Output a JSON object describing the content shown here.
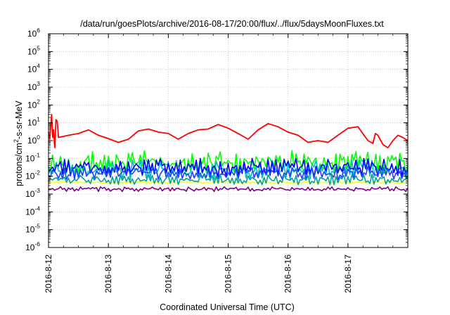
{
  "chart_data": {
    "type": "line",
    "title": "/data/run/goesPlots/archive/2016-08-17/20:00/flux/../flux/5daysMoonFluxes.txt",
    "xlabel": "Coordinated Universal Time (UTC)",
    "ylabel": {
      "pre": "protons/cm",
      "sup": "2",
      "post": "-s-sr-MeV"
    },
    "yscale": "log",
    "ylim": [
      1e-06,
      1000000.0
    ],
    "xlim": [
      "2016-08-12 00:00",
      "2016-08-17 23:59"
    ],
    "grid": true,
    "x_ticks": [
      "2016-8-12",
      "2016-8-13",
      "2016-8-14",
      "2016-8-15",
      "2016-8-16",
      "2016-8-17"
    ],
    "y_ticks": [
      {
        "base": "10",
        "exp": "6"
      },
      {
        "base": "10",
        "exp": "5"
      },
      {
        "base": "10",
        "exp": "4"
      },
      {
        "base": "10",
        "exp": "3"
      },
      {
        "base": "10",
        "exp": "2"
      },
      {
        "base": "10",
        "exp": "1"
      },
      {
        "base": "10",
        "exp": "0"
      },
      {
        "base": "10",
        "exp": "-1"
      },
      {
        "base": "10",
        "exp": "-2"
      },
      {
        "base": "10",
        "exp": "-3"
      },
      {
        "base": "10",
        "exp": "-4"
      },
      {
        "base": "10",
        "exp": "-5"
      },
      {
        "base": "10",
        "exp": "-6"
      }
    ],
    "series": [
      {
        "color": "#ff0000",
        "values": [
          [
            "2016-08-12 00:00",
            3.0
          ],
          [
            "2016-08-12 00:30",
            1.2
          ],
          [
            "2016-08-12 01:15",
            30
          ],
          [
            "2016-08-12 01:40",
            1.5
          ],
          [
            "2016-08-12 02:00",
            4.0
          ],
          [
            "2016-08-12 02:30",
            0.4
          ],
          [
            "2016-08-12 03:00",
            15
          ],
          [
            "2016-08-12 03:30",
            12
          ],
          [
            "2016-08-12 04:00",
            1.5
          ],
          [
            "2016-08-12 08:00",
            2.0
          ],
          [
            "2016-08-12 12:00",
            2.5
          ],
          [
            "2016-08-12 16:00",
            4.0
          ],
          [
            "2016-08-12 20:00",
            2.0
          ],
          [
            "2016-08-13 00:00",
            1.3
          ],
          [
            "2016-08-13 04:00",
            0.8
          ],
          [
            "2016-08-13 08:00",
            1.2
          ],
          [
            "2016-08-13 12:00",
            3.5
          ],
          [
            "2016-08-13 16:00",
            4.5
          ],
          [
            "2016-08-13 20:00",
            3.0
          ],
          [
            "2016-08-14 00:00",
            2.5
          ],
          [
            "2016-08-14 04:00",
            1.2
          ],
          [
            "2016-08-14 08:00",
            2.5
          ],
          [
            "2016-08-14 12:00",
            4.0
          ],
          [
            "2016-08-14 16:00",
            4.5
          ],
          [
            "2016-08-14 20:00",
            8.0
          ],
          [
            "2016-08-15 00:00",
            5.0
          ],
          [
            "2016-08-15 04:00",
            2.5
          ],
          [
            "2016-08-15 08:00",
            1.2
          ],
          [
            "2016-08-15 12:00",
            4.0
          ],
          [
            "2016-08-15 16:00",
            9.0
          ],
          [
            "2016-08-15 20:00",
            6.0
          ],
          [
            "2016-08-16 00:00",
            3.0
          ],
          [
            "2016-08-16 04:00",
            2.0
          ],
          [
            "2016-08-16 08:00",
            0.8
          ],
          [
            "2016-08-16 12:00",
            1.0
          ],
          [
            "2016-08-16 16:00",
            0.8
          ],
          [
            "2016-08-16 20:00",
            2.0
          ],
          [
            "2016-08-17 00:00",
            5.0
          ],
          [
            "2016-08-17 04:00",
            6.0
          ],
          [
            "2016-08-17 08:00",
            1.0
          ],
          [
            "2016-08-17 10:00",
            0.7
          ],
          [
            "2016-08-17 11:00",
            2.5
          ],
          [
            "2016-08-17 12:00",
            2.0
          ],
          [
            "2016-08-17 14:00",
            0.6
          ],
          [
            "2016-08-17 16:00",
            0.4
          ],
          [
            "2016-08-17 18:00",
            1.0
          ],
          [
            "2016-08-17 20:00",
            2.0
          ],
          [
            "2016-08-17 22:00",
            1.5
          ],
          [
            "2016-08-17 23:59",
            1.0
          ]
        ]
      },
      {
        "color": "#00ff00",
        "level": 0.06,
        "spread": 0.45
      },
      {
        "color": "#00c0c0",
        "level": 0.022,
        "spread": 0.4
      },
      {
        "color": "#0000ff",
        "level": 0.03,
        "spread": 0.35
      },
      {
        "color": "#2040ff",
        "level": 0.015,
        "spread": 0.25
      },
      {
        "color": "#ffff00",
        "level": 0.0045,
        "spread": 0.04
      },
      {
        "color": "#00a0a0",
        "level": 0.0065,
        "spread": 0.2
      },
      {
        "color": "#800080",
        "level": 0.0019,
        "spread": 0.09
      }
    ]
  }
}
